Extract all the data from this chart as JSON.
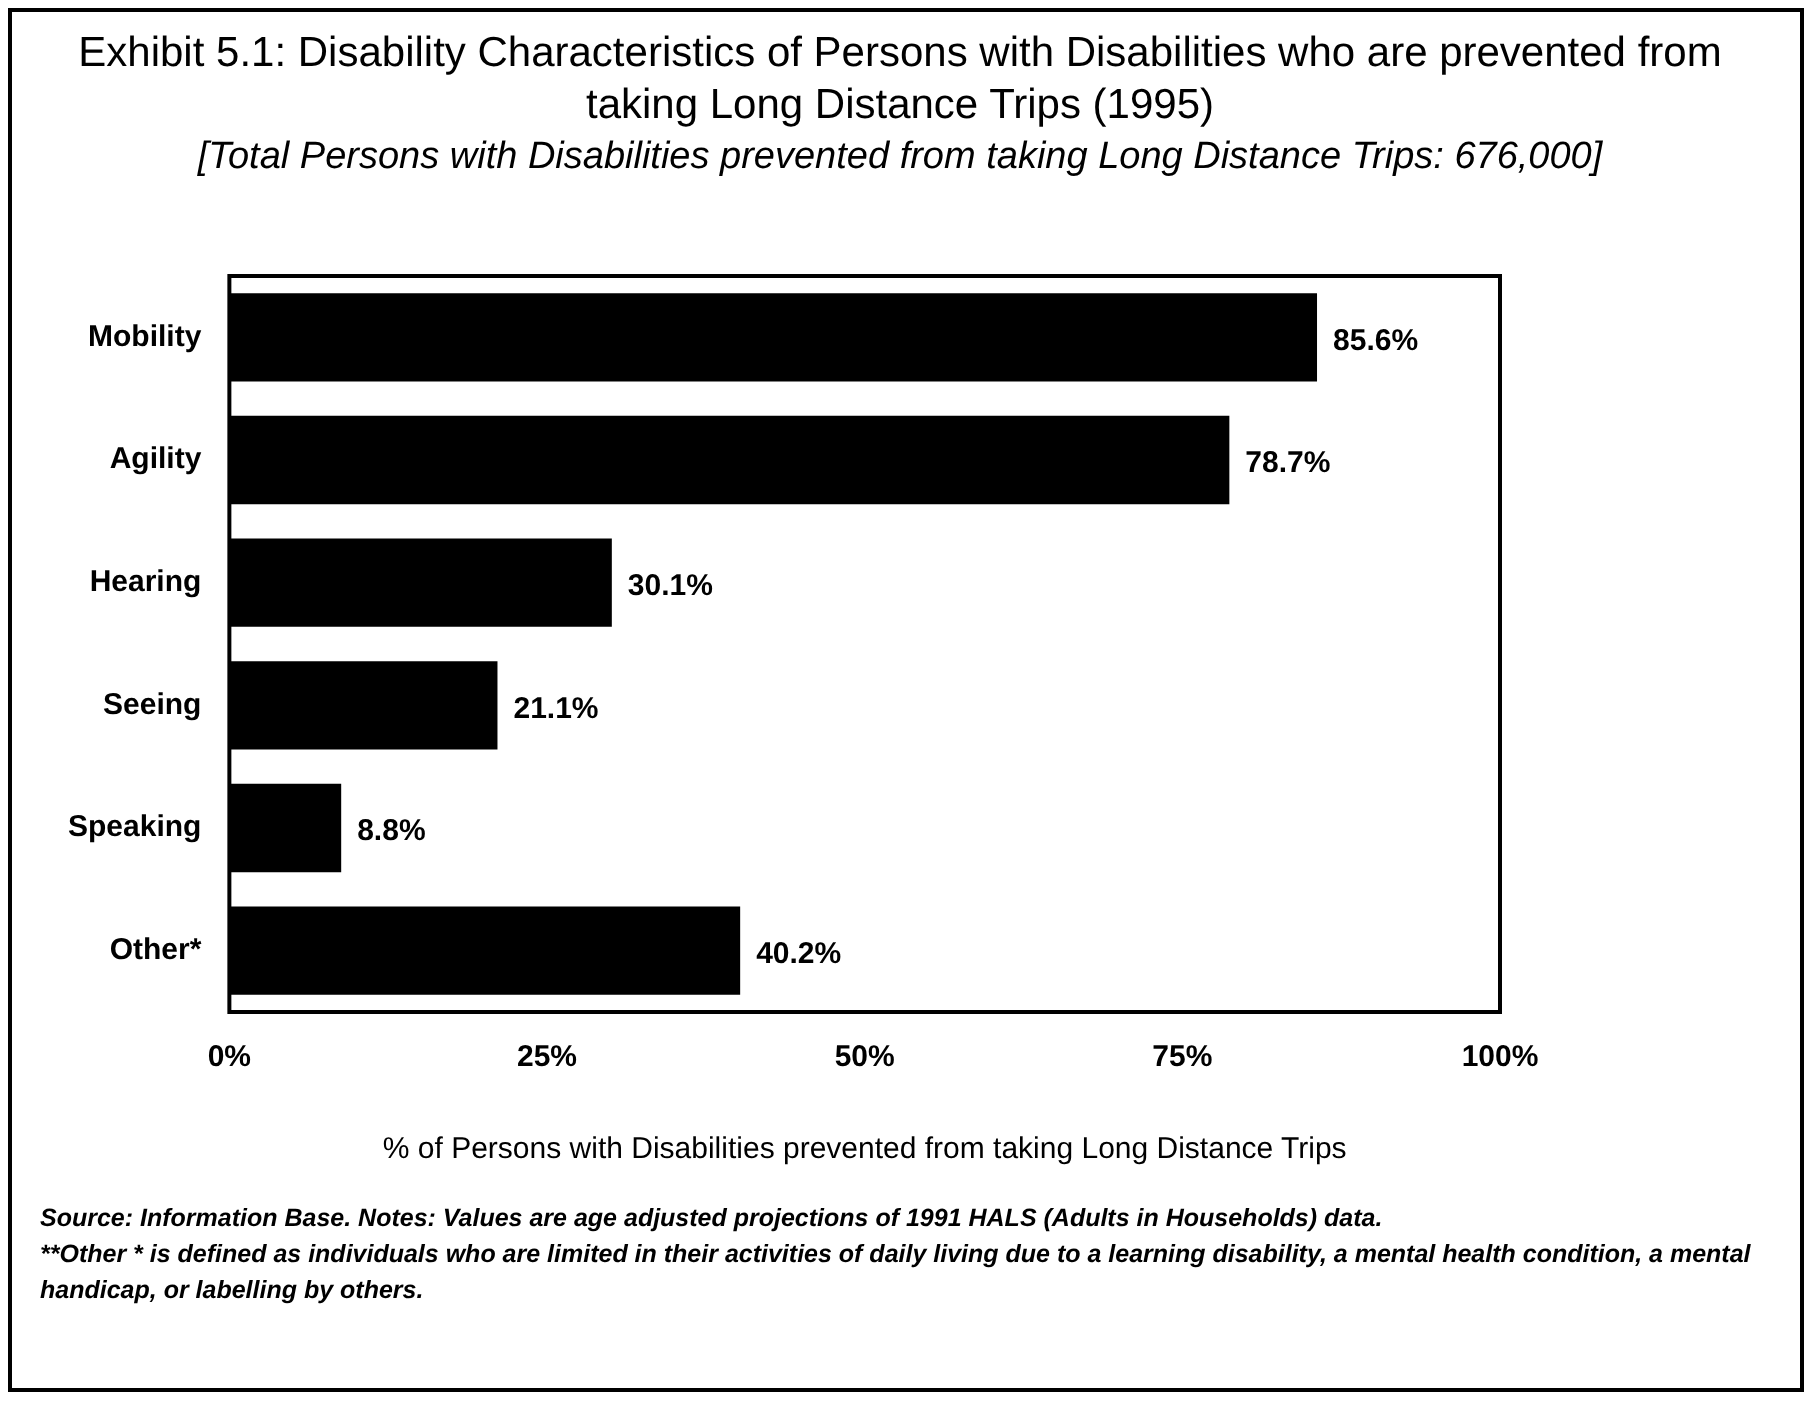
{
  "chart_data": {
    "type": "bar",
    "orientation": "horizontal",
    "title": "Exhibit 5.1: Disability Characteristics of Persons with Disabilities who are prevented from taking Long Distance Trips (1995)",
    "subtitle": "[Total Persons with Disabilities prevented from taking Long Distance Trips: 676,000]",
    "xlabel": "% of Persons with Disabilities prevented from taking Long Distance Trips",
    "categories": [
      "Mobility",
      "Agility",
      "Hearing",
      "Seeing",
      "Speaking",
      "Other*"
    ],
    "values": [
      85.6,
      78.7,
      30.1,
      21.1,
      8.8,
      40.2
    ],
    "value_labels": [
      "85.6%",
      "78.7%",
      "30.1%",
      "21.1%",
      "8.8%",
      "40.2%"
    ],
    "color": "#000000",
    "xlim": [
      0,
      100
    ],
    "xticks": [
      {
        "value": 0,
        "label": "0%"
      },
      {
        "value": 25,
        "label": "25%"
      },
      {
        "value": 50,
        "label": "50%"
      },
      {
        "value": 75,
        "label": "75%"
      },
      {
        "value": 100,
        "label": "100%"
      }
    ],
    "grid": false,
    "legend": false,
    "annotations": [
      "Source: Information Base.  Notes: Values are age adjusted projections of 1991 HALS (Adults in Households) data.",
      "**Other * is defined as individuals who are limited in their activities of daily living due to a learning disability, a mental health condition, a mental handicap, or labelling by others."
    ]
  }
}
